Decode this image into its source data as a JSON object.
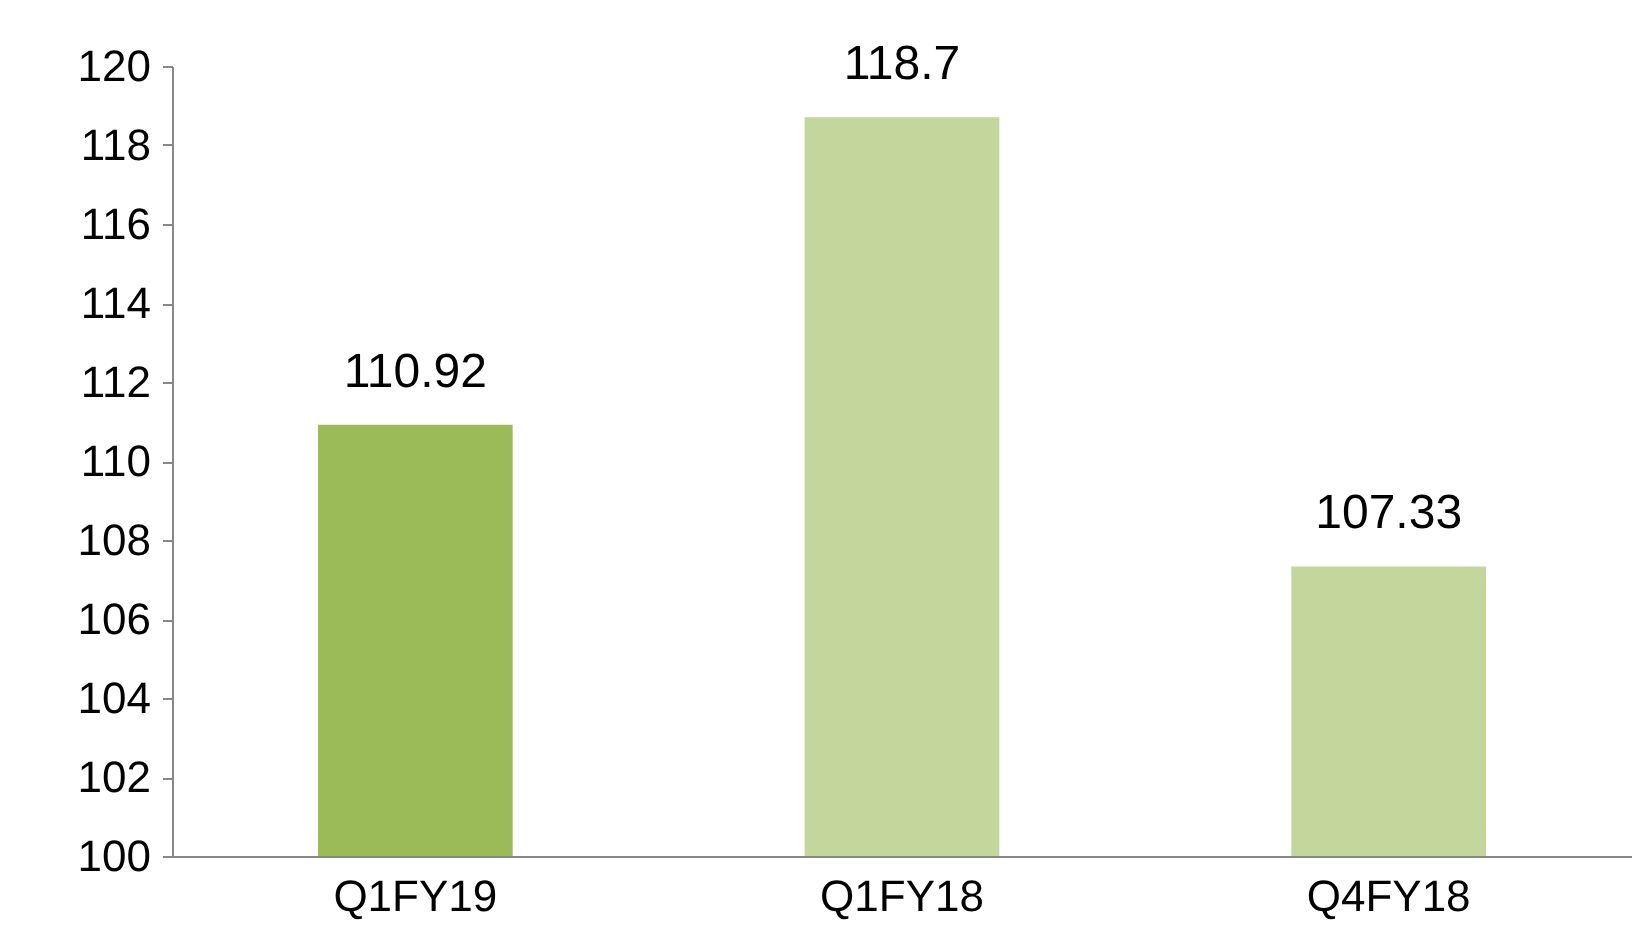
{
  "chart_data": {
    "type": "bar",
    "categories": [
      "Q1FY19",
      "Q1FY18",
      "Q4FY18"
    ],
    "values": [
      110.92,
      118.7,
      107.33
    ],
    "colors": [
      "#9bbb59",
      "#c3d69b",
      "#c3d69b"
    ],
    "ylim": [
      100,
      120
    ],
    "yticks": [
      100,
      102,
      104,
      106,
      108,
      110,
      112,
      114,
      116,
      118,
      120
    ],
    "grid": false,
    "data_labels": true,
    "legend": false
  }
}
